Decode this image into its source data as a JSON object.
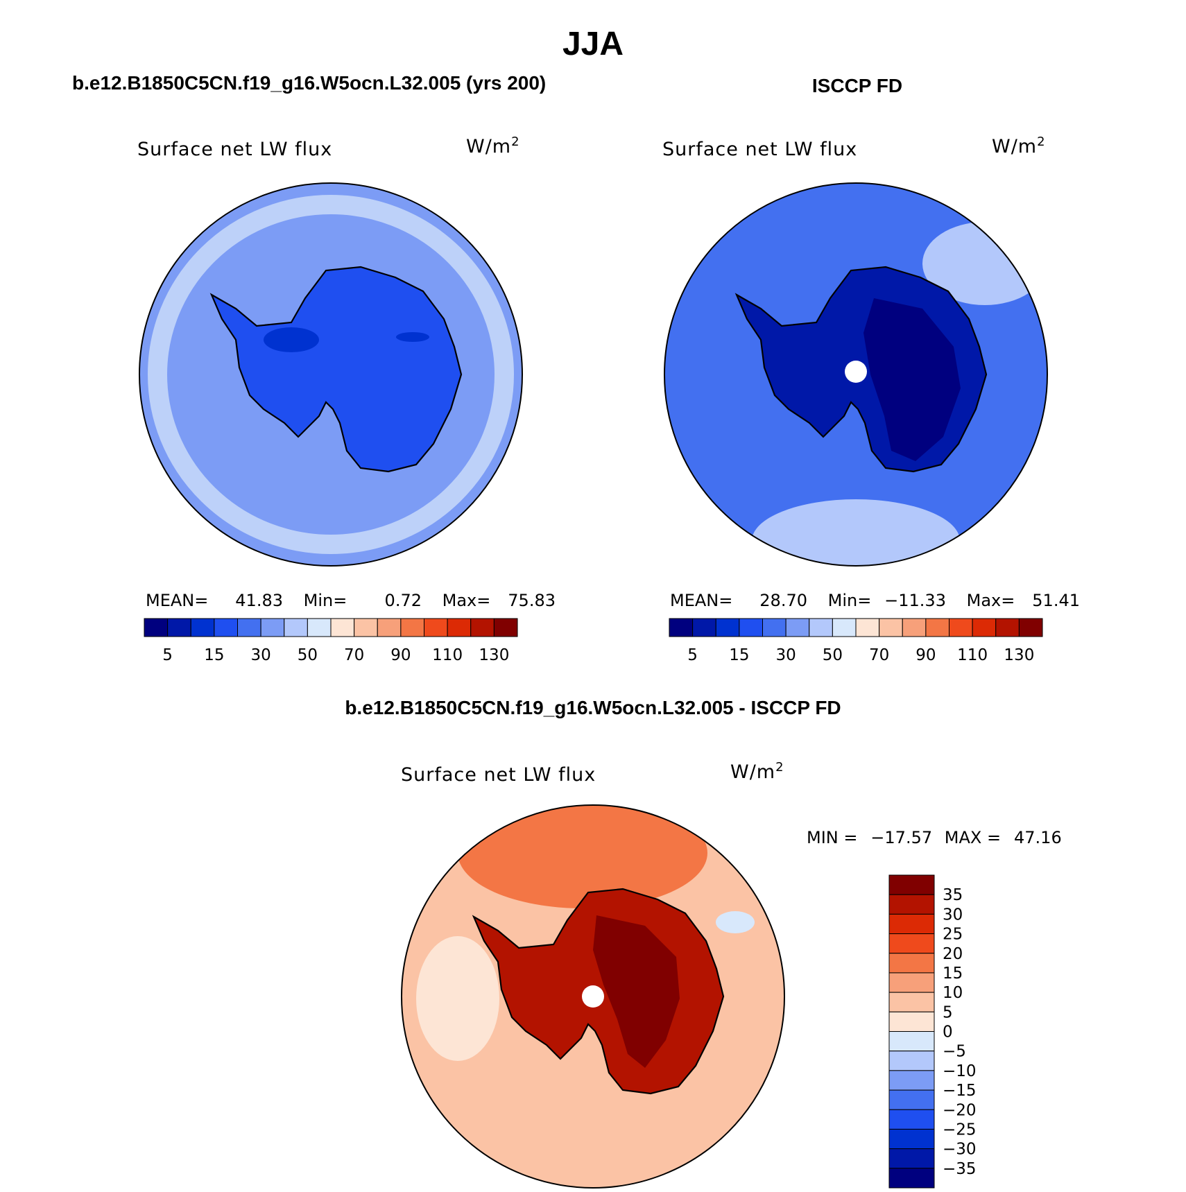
{
  "season_title": "JJA",
  "colors": {
    "abs_scale": [
      "#00007f",
      "#0018a8",
      "#0032d0",
      "#1f4ff0",
      "#4370f0",
      "#7c9cf5",
      "#b3c8fb",
      "#d8e8fb",
      "#fde5d5",
      "#fbc3a5",
      "#f7a07a",
      "#f37645",
      "#ef4a1c",
      "#dc2a05",
      "#b31300",
      "#800000"
    ],
    "diff_scale": [
      "#00007f",
      "#0018a8",
      "#0032d0",
      "#1f4ff0",
      "#4370f0",
      "#7c9cf5",
      "#b3c8fb",
      "#d8e8fb",
      "#fde5d5",
      "#fbc3a5",
      "#f7a07a",
      "#f37645",
      "#ef4a1c",
      "#dc2a05",
      "#b31300",
      "#800000"
    ],
    "coastline": "#000000"
  },
  "panels": [
    {
      "title": "b.e12.B1850C5CN.f19_g16.W5ocn.L32.005 (yrs 200)",
      "variable": "Surface net LW flux",
      "units": "W/m",
      "units_exp": "2",
      "stats": {
        "mean_label": "MEAN=",
        "mean": "41.83",
        "min_label": "Min=",
        "min": "0.72",
        "max_label": "Max=",
        "max": "75.83"
      },
      "colorbar_ticks": [
        "5",
        "15",
        "30",
        "50",
        "70",
        "90",
        "110",
        "130"
      ],
      "ocean_level": 0.36,
      "land_level": 0.22
    },
    {
      "title": "ISCCP FD",
      "variable": "Surface net LW flux",
      "units": "W/m",
      "units_exp": "2",
      "stats": {
        "mean_label": "MEAN=",
        "mean": "28.70",
        "min_label": "Min=",
        "min": "−11.33",
        "max_label": "Max=",
        "max": "51.41"
      },
      "colorbar_ticks": [
        "5",
        "15",
        "30",
        "50",
        "70",
        "90",
        "110",
        "130"
      ],
      "ocean_level": 0.28,
      "land_level": 0.06
    }
  ],
  "diff_panel": {
    "title": "b.e12.B1850C5CN.f19_g16.W5ocn.L32.005 - ISCCP FD",
    "variable": "Surface net LW flux",
    "units": "W/m",
    "units_exp": "2",
    "stats": {
      "min_label": "MIN =",
      "min": "−17.57",
      "max_label": "MAX =",
      "max": "47.16"
    },
    "colorbar_ticks": [
      "35",
      "30",
      "25",
      "20",
      "15",
      "10",
      "5",
      "0",
      "−5",
      "−10",
      "−15",
      "−20",
      "−25",
      "−30",
      "−35"
    ],
    "ocean_level": 0.58,
    "land_level": 0.93
  }
}
